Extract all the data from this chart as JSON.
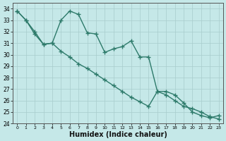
{
  "line_jagged_x": [
    0,
    1,
    2,
    3,
    4,
    5,
    6,
    7,
    8,
    9,
    10,
    11,
    12,
    13,
    14,
    15,
    16,
    17,
    18,
    19,
    20,
    21,
    22,
    23
  ],
  "line_jagged_y": [
    33.8,
    33.0,
    32.0,
    30.9,
    31.0,
    33.0,
    33.8,
    33.5,
    31.9,
    31.8,
    30.2,
    30.5,
    30.7,
    31.2,
    29.8,
    29.8,
    26.8,
    26.8,
    26.5,
    25.8,
    25.0,
    24.7,
    24.5,
    24.7
  ],
  "line_straight_x": [
    0,
    1,
    2,
    3,
    4,
    5,
    6,
    7,
    8,
    9,
    10,
    11,
    12,
    13,
    14,
    15,
    16,
    17,
    18,
    19,
    20,
    21,
    22,
    23
  ],
  "line_straight_y": [
    33.8,
    33.0,
    31.8,
    30.9,
    31.0,
    30.3,
    29.8,
    29.2,
    28.8,
    28.3,
    27.8,
    27.3,
    26.8,
    26.3,
    25.9,
    25.5,
    26.8,
    26.5,
    26.0,
    25.5,
    25.3,
    25.0,
    24.6,
    24.4
  ],
  "color": "#2d7a6a",
  "bg_color": "#c5e8e8",
  "grid_color": "#a8cccc",
  "xlabel": "Humidex (Indice chaleur)",
  "ylim": [
    24,
    34.5
  ],
  "xlim": [
    -0.5,
    23.5
  ],
  "yticks": [
    24,
    25,
    26,
    27,
    28,
    29,
    30,
    31,
    32,
    33,
    34
  ],
  "xticks": [
    0,
    1,
    2,
    3,
    4,
    5,
    6,
    7,
    8,
    9,
    10,
    11,
    12,
    13,
    14,
    15,
    16,
    17,
    18,
    19,
    20,
    21,
    22,
    23
  ],
  "marker": "+",
  "markersize": 4,
  "linewidth": 1.0
}
